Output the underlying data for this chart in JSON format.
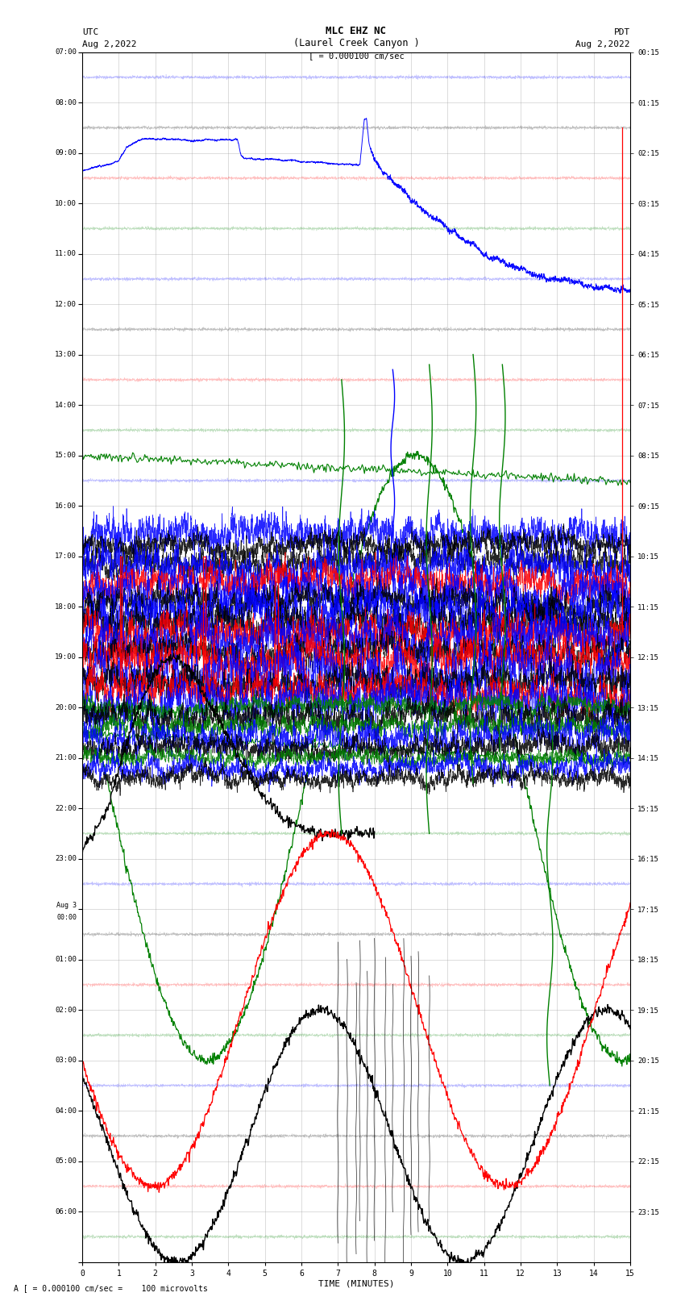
{
  "title_line1": "MLC EHZ NC",
  "title_line2": "(Laurel Creek Canyon )",
  "scale_label": "[ = 0.000100 cm/sec",
  "left_label_top": "UTC",
  "left_label_date": "Aug 2,2022",
  "right_label_top": "PDT",
  "right_label_date": "Aug 2,2022",
  "bottom_label": "TIME (MINUTES)",
  "bottom_note": "A [ = 0.000100 cm/sec =    100 microvolts",
  "xlim": [
    0,
    15
  ],
  "background_color": "#ffffff",
  "grid_color": "#999999",
  "C_BLACK": "#000000",
  "C_BLUE": "#0000ff",
  "C_RED": "#ff0000",
  "C_GREEN": "#008000",
  "fig_width": 8.5,
  "fig_height": 16.13,
  "left_yticks_utc": [
    "07:00",
    "08:00",
    "09:00",
    "10:00",
    "11:00",
    "12:00",
    "13:00",
    "14:00",
    "15:00",
    "16:00",
    "17:00",
    "18:00",
    "19:00",
    "20:00",
    "21:00",
    "22:00",
    "23:00",
    "Aug 3\n00:00",
    "01:00",
    "02:00",
    "03:00",
    "04:00",
    "05:00",
    "06:00"
  ],
  "right_yticks_pdt": [
    "00:15",
    "01:15",
    "02:15",
    "03:15",
    "04:15",
    "05:15",
    "06:15",
    "07:15",
    "08:15",
    "09:15",
    "10:15",
    "11:15",
    "12:15",
    "13:15",
    "14:15",
    "15:15",
    "16:15",
    "17:15",
    "18:15",
    "19:15",
    "20:15",
    "21:15",
    "22:15",
    "23:15"
  ],
  "num_rows": 24
}
